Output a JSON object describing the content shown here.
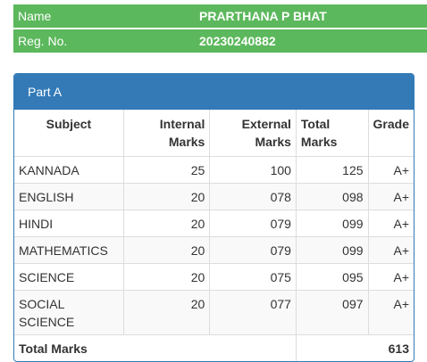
{
  "student": {
    "name_label": "Name",
    "name_value": "PRARTHANA P BHAT",
    "reg_label": "Reg. No.",
    "reg_value": "20230240882"
  },
  "part": {
    "heading": "Part A",
    "columns": {
      "subject": "Subject",
      "internal_line1": "Internal",
      "internal_line2": "Marks",
      "external_line1": "External",
      "external_line2": "Marks",
      "total_line1": "Total",
      "total_line2": "Marks",
      "grade": "Grade"
    },
    "rows": [
      {
        "subject_line1": "KANNADA",
        "subject_line2": "",
        "internal": "25",
        "external": "100",
        "total": "125",
        "grade": "A+"
      },
      {
        "subject_line1": "ENGLISH",
        "subject_line2": "",
        "internal": "20",
        "external": "078",
        "total": "098",
        "grade": "A+"
      },
      {
        "subject_line1": "HINDI",
        "subject_line2": "",
        "internal": "20",
        "external": "079",
        "total": "099",
        "grade": "A+"
      },
      {
        "subject_line1": "MATHEMATICS",
        "subject_line2": "",
        "internal": "20",
        "external": "079",
        "total": "099",
        "grade": "A+"
      },
      {
        "subject_line1": "SCIENCE",
        "subject_line2": "",
        "internal": "20",
        "external": "075",
        "total": "095",
        "grade": "A+"
      },
      {
        "subject_line1": "SOCIAL",
        "subject_line2": "SCIENCE",
        "internal": "20",
        "external": "077",
        "total": "097",
        "grade": "A+"
      }
    ],
    "total_label": "Total Marks",
    "total_value": "613"
  }
}
